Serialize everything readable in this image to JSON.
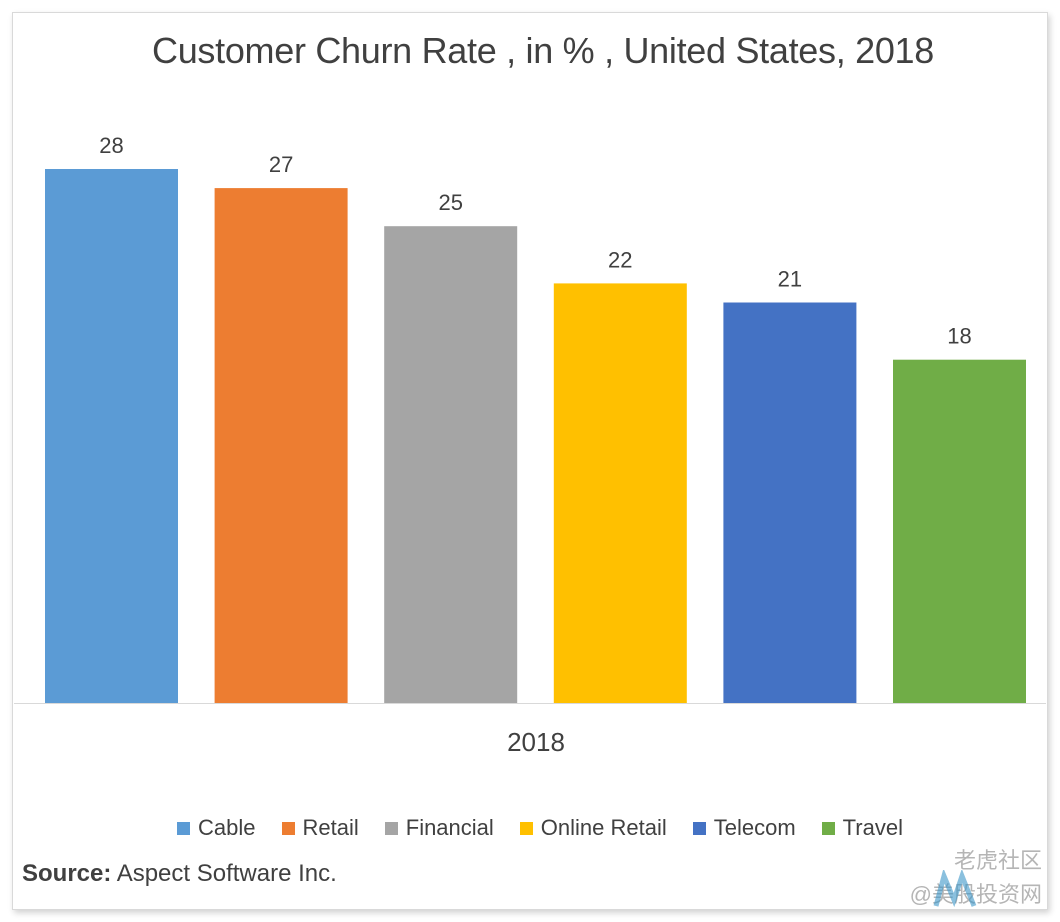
{
  "chart_data": {
    "type": "bar",
    "title": "Customer Churn Rate , in % , United States, 2018",
    "categories": [
      "2018"
    ],
    "series": [
      {
        "name": "Cable",
        "values": [
          28
        ],
        "color": "#5B9BD5"
      },
      {
        "name": "Retail",
        "values": [
          27
        ],
        "color": "#ED7D31"
      },
      {
        "name": "Financial",
        "values": [
          25
        ],
        "color": "#A5A5A5"
      },
      {
        "name": "Online Retail",
        "values": [
          22
        ],
        "color": "#FFC000"
      },
      {
        "name": "Telecom",
        "values": [
          21
        ],
        "color": "#4472C4"
      },
      {
        "name": "Travel",
        "values": [
          18
        ],
        "color": "#70AD47"
      }
    ],
    "ylim": [
      0,
      28
    ],
    "grid": false,
    "legend": "bottom",
    "xlabel": "",
    "ylabel": ""
  },
  "source": {
    "label": "Source:",
    "text": "Aspect Software Inc."
  },
  "watermark": {
    "line1": "老虎社区",
    "line2": "@美股投资网"
  }
}
